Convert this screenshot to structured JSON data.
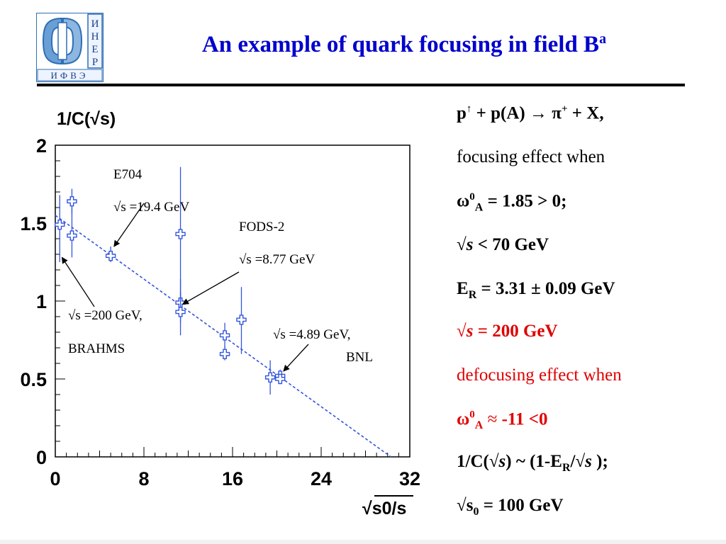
{
  "logo": {
    "letters": [
      "И",
      "Н",
      "Е",
      "Р"
    ],
    "caption": "ИФВЭ",
    "colors": {
      "frame": "#2f6fb5",
      "body": "#8db6e0",
      "text": "#1a3f8a"
    }
  },
  "title": {
    "text": "An example of quark focusing in field  B",
    "superscript": "a",
    "color": "#0000cc"
  },
  "chart_data": {
    "type": "scatter",
    "title": "",
    "ylabel": "1/C(√s)",
    "xlabel": "√s0/s",
    "xlim": [
      0,
      32
    ],
    "ylim": [
      0,
      2
    ],
    "x_ticks": [
      "0",
      "8",
      "16",
      "24",
      "32"
    ],
    "y_ticks": [
      "0",
      "0.5",
      "1",
      "1.5",
      "2"
    ],
    "grid": false,
    "series": [
      {
        "color": "#3355dd",
        "marker": "open-cross",
        "points": [
          {
            "x": 0.4,
            "y": 1.49,
            "ylo": 1.25,
            "yhi": 1.68
          },
          {
            "x": 1.5,
            "y": 1.64,
            "ylo": 1.56,
            "yhi": 1.72
          },
          {
            "x": 1.5,
            "y": 1.42,
            "ylo": 1.28,
            "yhi": 1.6
          },
          {
            "x": 5.0,
            "y": 1.29,
            "ylo": 1.25,
            "yhi": 1.35
          },
          {
            "x": 11.3,
            "y": 1.43,
            "ylo": 1.0,
            "yhi": 1.86
          },
          {
            "x": 11.3,
            "y": 0.99,
            "ylo": 0.86,
            "yhi": 1.14
          },
          {
            "x": 11.3,
            "y": 0.93,
            "ylo": 0.78,
            "yhi": 1.06
          },
          {
            "x": 15.3,
            "y": 0.78,
            "ylo": 0.7,
            "yhi": 0.86
          },
          {
            "x": 15.3,
            "y": 0.66,
            "ylo": 0.62,
            "yhi": 0.71
          },
          {
            "x": 16.8,
            "y": 0.88,
            "ylo": 0.66,
            "yhi": 1.09
          },
          {
            "x": 19.4,
            "y": 0.51,
            "ylo": 0.4,
            "yhi": 0.62
          },
          {
            "x": 20.3,
            "y": 0.52,
            "ylo": 0.48,
            "yhi": 0.56
          },
          {
            "x": 20.3,
            "y": 0.5,
            "ylo": 0.47,
            "yhi": 0.53
          }
        ]
      }
    ],
    "fit_line": {
      "style": "dashed",
      "color": "#3355dd",
      "x": [
        0,
        30.3
      ],
      "y": [
        1.55,
        0
      ]
    },
    "annotations": [
      {
        "lines": [
          "E704",
          "√s =19.4 GeV"
        ],
        "arrow_to": {
          "x": 5.3,
          "y": 1.35
        }
      },
      {
        "lines": [
          "FODS-2",
          "√s =8.77 GeV"
        ],
        "arrow_to": {
          "x": 11.5,
          "y": 0.98
        }
      },
      {
        "lines": [
          "√s =200 GeV,",
          "BRAHMS"
        ],
        "arrow_to": {
          "x": 0.6,
          "y": 1.28
        }
      },
      {
        "lines": [
          "√s =4.89 GeV,",
          "BNL"
        ],
        "arrow_to": {
          "x": 20.6,
          "y": 0.55
        }
      }
    ]
  },
  "right_panel": {
    "line1": {
      "p": "p",
      "arrow": "↑",
      "rest": " + p(A) → π",
      "sup": "+",
      "end": "  + X,"
    },
    "line2": "focusing  effect when",
    "line3": {
      "omega": "ω",
      "sup": "0",
      "sub": "A",
      "rest": " = 1.85  > 0;"
    },
    "line4": {
      "root": "√",
      "s": "s",
      "rest": " < 70  GeV"
    },
    "line5": {
      "E": "E",
      "sub": "R",
      "rest": " = 3.31  ± 0.09 GeV"
    },
    "line6": {
      "root": "√",
      "s": "s",
      "rest": " = 200  GeV"
    },
    "line7": "defocusing  effect when",
    "line8": {
      "omega": "ω",
      "sup": "0",
      "sub": "A",
      "approx": " ≈ ",
      "rest": "-11  <0"
    },
    "line9": {
      "a": "1/C(√",
      "s1": "s",
      "b": ")  ~ (1-E",
      "sub": "R",
      "c": "/√",
      "s2": "s",
      "d": " );"
    },
    "line10": {
      "a": "√s",
      "sub": "0",
      "rest": " = 100 GeV"
    }
  }
}
